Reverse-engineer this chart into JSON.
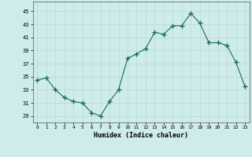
{
  "x": [
    0,
    1,
    2,
    3,
    4,
    5,
    6,
    7,
    8,
    9,
    10,
    11,
    12,
    13,
    14,
    15,
    16,
    17,
    18,
    19,
    20,
    21,
    22,
    23
  ],
  "y": [
    34.5,
    34.8,
    33.0,
    31.8,
    31.2,
    31.0,
    29.5,
    29.0,
    31.2,
    33.0,
    37.8,
    38.5,
    39.3,
    41.8,
    41.5,
    42.8,
    42.8,
    44.7,
    43.2,
    40.2,
    40.2,
    39.8,
    37.2,
    33.5
  ],
  "line_color": "#1a6b60",
  "marker": "+",
  "marker_size": 4,
  "bg_color": "#ceecea",
  "grid_color": "#b8d8d6",
  "xlabel": "Humidex (Indice chaleur)",
  "ylabel_ticks": [
    29,
    31,
    33,
    35,
    37,
    39,
    41,
    43,
    45
  ],
  "ylim": [
    28.0,
    46.5
  ],
  "xlim": [
    -0.5,
    23.5
  ],
  "xtick_labels": [
    "0",
    "1",
    "2",
    "3",
    "4",
    "5",
    "6",
    "7",
    "8",
    "9",
    "10",
    "11",
    "12",
    "13",
    "14",
    "15",
    "16",
    "17",
    "18",
    "19",
    "20",
    "21",
    "22",
    "23"
  ]
}
